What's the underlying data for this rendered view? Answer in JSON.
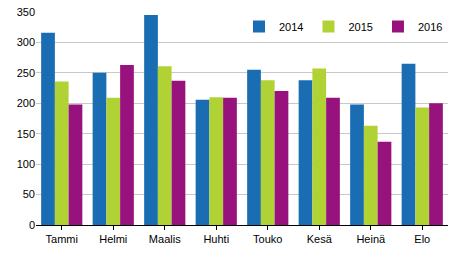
{
  "chart_data": {
    "type": "bar",
    "categories": [
      "Tammi",
      "Helmi",
      "Maalis",
      "Huhti",
      "Touko",
      "Kesä",
      "Heinä",
      "Elo"
    ],
    "series": [
      {
        "name": "2014",
        "color": "#1a6db3",
        "values": [
          316,
          250,
          345,
          206,
          255,
          238,
          198,
          265
        ]
      },
      {
        "name": "2015",
        "color": "#b1d234",
        "values": [
          236,
          209,
          261,
          210,
          238,
          257,
          163,
          193
        ]
      },
      {
        "name": "2016",
        "color": "#98127e",
        "values": [
          198,
          263,
          237,
          209,
          220,
          209,
          137,
          200
        ]
      }
    ],
    "ylim": [
      0,
      350
    ],
    "yticks": [
      0,
      50,
      100,
      150,
      200,
      250,
      300,
      350
    ],
    "grid": true,
    "legend": "top-right"
  }
}
